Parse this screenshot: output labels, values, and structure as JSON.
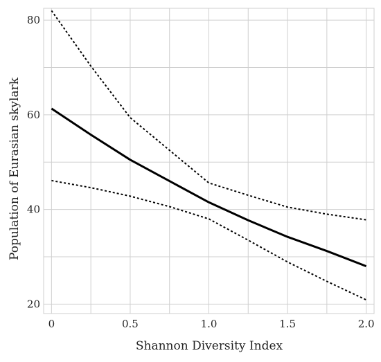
{
  "chart_data": {
    "type": "line",
    "xlabel": "Shannon Diversity Index",
    "ylabel": "Population of Eurasian skylark",
    "xlim": [
      -0.05,
      2.05
    ],
    "ylim": [
      18,
      82.5
    ],
    "grid": true,
    "x_ticks": [
      0,
      0.5,
      1.0,
      1.5,
      2.0
    ],
    "x_tick_labels": [
      "0",
      "0.5",
      "1.0",
      "1.5",
      "2.0"
    ],
    "y_ticks": [
      20,
      40,
      60,
      80
    ],
    "y_tick_labels": [
      "20",
      "40",
      "60",
      "80"
    ],
    "series": [
      {
        "style": "solid",
        "x": [
          0,
          0.25,
          0.5,
          0.75,
          1.0,
          1.25,
          1.5,
          1.75,
          2.0
        ],
        "values": [
          61.3,
          55.8,
          50.5,
          46.0,
          41.5,
          37.7,
          34.2,
          31.2,
          28.0
        ]
      },
      {
        "style": "dotted",
        "x": [
          0,
          0.25,
          0.5,
          0.75,
          1.0,
          1.25,
          1.5,
          1.75,
          2.0
        ],
        "values": [
          82.0,
          70.3,
          59.4,
          52.5,
          45.6,
          43.0,
          40.5,
          39.0,
          37.8
        ]
      },
      {
        "style": "dotted",
        "x": [
          0,
          0.25,
          0.5,
          0.75,
          1.0,
          1.25,
          1.5,
          1.75,
          2.0
        ],
        "values": [
          46.1,
          44.6,
          42.8,
          40.6,
          38.0,
          33.5,
          28.9,
          24.8,
          20.9
        ]
      }
    ]
  }
}
